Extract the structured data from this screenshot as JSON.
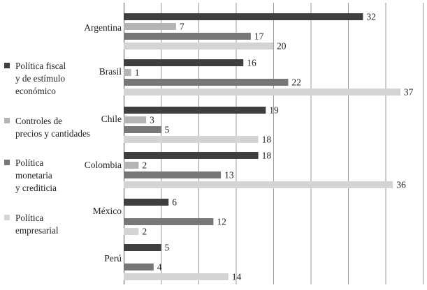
{
  "chart_data": {
    "type": "bar",
    "orientation": "horizontal",
    "categories": [
      "Argentina",
      "Brasil",
      "Chile",
      "Colombia",
      "México",
      "Perú"
    ],
    "series": [
      {
        "name": "Política fiscal y de estímulo económico",
        "color": "#3f3f3f",
        "values": [
          32,
          16,
          19,
          18,
          6,
          5
        ]
      },
      {
        "name": "Controles de precios y cantidades",
        "color": "#b4b4b4",
        "values": [
          7,
          1,
          3,
          2,
          null,
          null
        ]
      },
      {
        "name": "Política monetaria y crediticia",
        "color": "#777777",
        "values": [
          17,
          22,
          5,
          13,
          12,
          4
        ]
      },
      {
        "name": "Política empresarial",
        "color": "#d4d4d4",
        "values": [
          20,
          37,
          18,
          36,
          2,
          14
        ]
      }
    ],
    "value_labels": [
      [
        "32",
        "7",
        "17",
        "20"
      ],
      [
        "16",
        "1",
        "22",
        "37"
      ],
      [
        "19",
        "3",
        "5",
        "18"
      ],
      [
        "18",
        "2",
        "13",
        "36"
      ],
      [
        "6",
        null,
        "12",
        "2"
      ],
      [
        "5",
        null,
        "4",
        "14"
      ]
    ],
    "xlim": [
      0,
      40
    ],
    "grid": true,
    "legend_position": "left",
    "legend": [
      {
        "lines": [
          "Política fiscal",
          "y de estímulo",
          "económico"
        ],
        "color": "#3f3f3f"
      },
      {
        "lines": [
          "Controles de",
          "precios y cantidades"
        ],
        "color": "#b4b4b4"
      },
      {
        "lines": [
          "Política",
          "monetaria",
          "y crediticia"
        ],
        "color": "#777777"
      },
      {
        "lines": [
          "Política",
          "empresarial"
        ],
        "color": "#d4d4d4"
      }
    ]
  }
}
